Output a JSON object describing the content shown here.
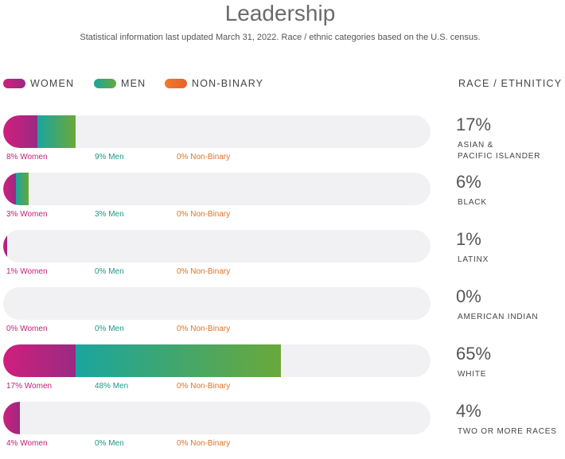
{
  "title": "Leadership",
  "subtitle": "Statistical information last updated March 31, 2022. Race / ethnic categories based on the U.S. census.",
  "legend": [
    {
      "label": "WOMEN",
      "color": "#c4207a"
    },
    {
      "label": "MEN",
      "color": "#1aa59f"
    },
    {
      "label": "NON-BINARY",
      "color": "#f07a2a"
    }
  ],
  "race_heading": "RACE / ETHNITICY",
  "chart_data": {
    "type": "bar",
    "stacked": true,
    "orientation": "horizontal",
    "xlim": [
      0,
      100
    ],
    "categories": [
      "ASIAN & PACIFIC ISLANDER",
      "BLACK",
      "LATINX",
      "AMERICAN INDIAN",
      "WHITE",
      "TWO OR MORE RACES"
    ],
    "totals": [
      "17%",
      "6%",
      "1%",
      "0%",
      "65%",
      "4%"
    ],
    "series": [
      {
        "name": "Women",
        "values": [
          8,
          3,
          1,
          0,
          17,
          4
        ]
      },
      {
        "name": "Men",
        "values": [
          9,
          3,
          0,
          0,
          48,
          0
        ]
      },
      {
        "name": "Non-Binary",
        "values": [
          0,
          0,
          0,
          0,
          0,
          0
        ]
      }
    ],
    "value_labels": {
      "women": [
        "8% Women",
        "3% Women",
        "1% Women",
        "0% Women",
        "17% Women",
        "4% Women"
      ],
      "men": [
        "9% Men",
        "3% Men",
        "0% Men",
        "0% Men",
        "48% Men",
        "0% Men"
      ],
      "nb": [
        "0% Non-Binary",
        "0% Non-Binary",
        "0% Non-Binary",
        "0% Non-Binary",
        "0% Non-Binary",
        "0% Non-Binary"
      ]
    },
    "category_lines": [
      [
        "ASIAN &",
        "PACIFIC ISLANDER"
      ],
      [
        "BLACK"
      ],
      [
        "LATINX"
      ],
      [
        "AMERICAN INDIAN"
      ],
      [
        "WHITE"
      ],
      [
        "TWO OR MORE RACES"
      ]
    ]
  }
}
